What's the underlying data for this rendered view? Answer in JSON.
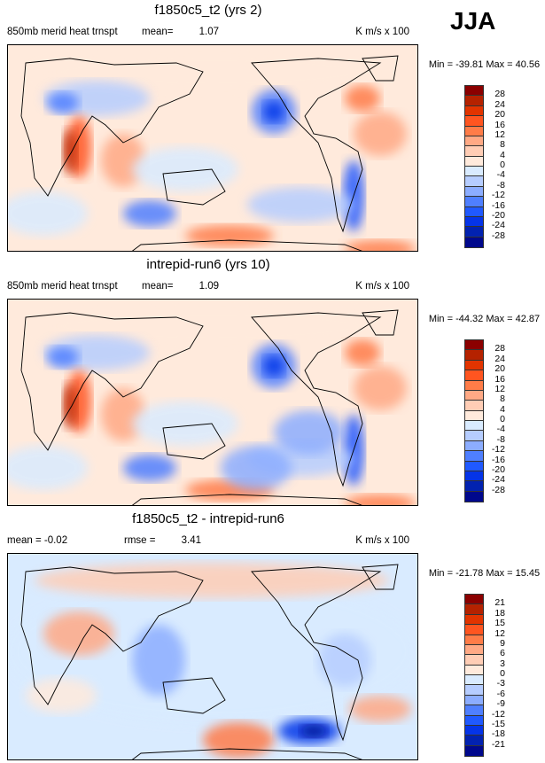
{
  "season": "JJA",
  "colors": [
    "#8b0000",
    "#b52200",
    "#e23400",
    "#ff5520",
    "#ff7c48",
    "#ffa985",
    "#ffcdb5",
    "#ffeadc",
    "#d9ebff",
    "#b6cdff",
    "#8cadff",
    "#4f7fff",
    "#2059ff",
    "#0534e8",
    "#0222b0",
    "#00088c"
  ],
  "panels": [
    {
      "title": "f1850c5_t2 (yrs 2)",
      "left_label": "850mb merid heat trnspt",
      "stat_label": "mean=",
      "stat_value": "1.07",
      "units": "K m/s x 100",
      "minmax": "Min = -39.81 Max =  40.56",
      "levels": [
        "28",
        "24",
        "20",
        "16",
        "12",
        "8",
        "4",
        "0",
        "-4",
        "-8",
        "-12",
        "-16",
        "-20",
        "-24",
        "-28"
      ]
    },
    {
      "title": "intrepid-run6 (yrs 10)",
      "left_label": "850mb merid heat trnspt",
      "stat_label": "mean=",
      "stat_value": "1.09",
      "units": "K m/s x 100",
      "minmax": "Min = -44.32 Max =  42.87",
      "levels": [
        "28",
        "24",
        "20",
        "16",
        "12",
        "8",
        "4",
        "0",
        "-4",
        "-8",
        "-12",
        "-16",
        "-20",
        "-24",
        "-28"
      ]
    },
    {
      "title": "f1850c5_t2 - intrepid-run6",
      "left_label": "mean = -0.02",
      "stat_label": "rmse =",
      "stat_value": "3.41",
      "units": "K m/s x 100",
      "minmax": "Min = -21.78 Max =  15.45",
      "levels": [
        "21",
        "18",
        "15",
        "12",
        "9",
        "6",
        "3",
        "0",
        "-3",
        "-6",
        "-9",
        "-12",
        "-15",
        "-18",
        "-21"
      ]
    }
  ]
}
